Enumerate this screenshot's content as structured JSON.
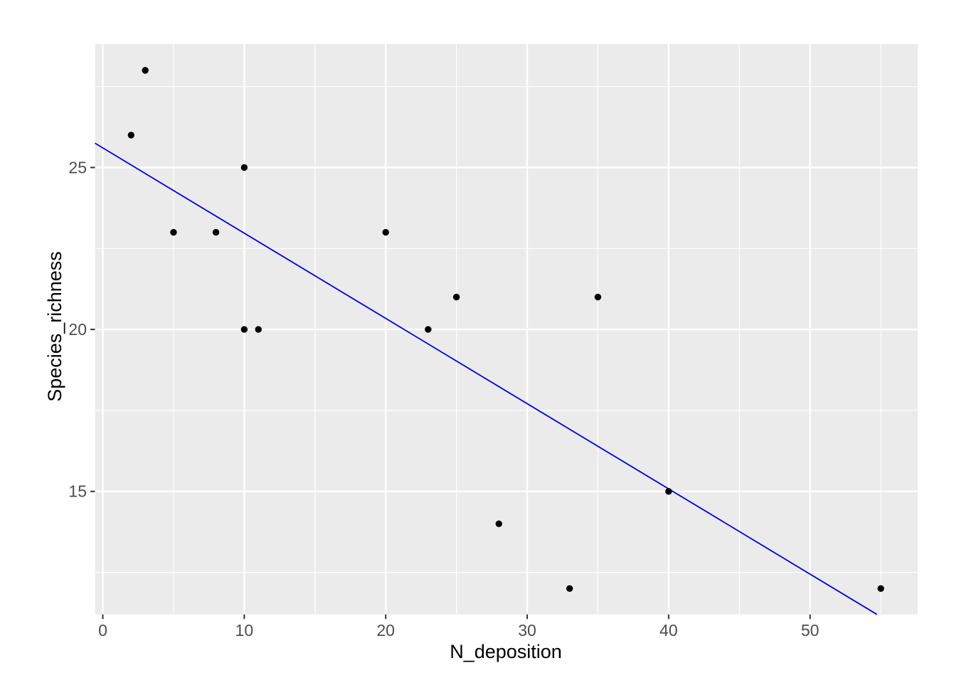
{
  "figure": {
    "background": "#FFFFFF",
    "description": "Scatter plot of Species_richness versus N_deposition with linear regression line"
  },
  "chart_data": {
    "type": "scatter",
    "title": "",
    "xlabel": "N_deposition",
    "ylabel": "Species_richness",
    "points": {
      "x": [
        2,
        3,
        5,
        8,
        10,
        10,
        11,
        20,
        23,
        25,
        28,
        33,
        35,
        40,
        55
      ],
      "y": [
        26,
        28,
        23,
        23,
        25,
        20,
        20,
        23,
        20,
        21,
        14,
        12,
        21,
        15,
        12
      ]
    },
    "x_ticks": [
      0,
      10,
      20,
      30,
      40,
      50
    ],
    "y_ticks": [
      15,
      20,
      25
    ],
    "x_minor_ticks": [
      5,
      15,
      25,
      35,
      45,
      55
    ],
    "y_minor_ticks": [
      12.5,
      17.5,
      22.5,
      27.5
    ],
    "xlim": [
      -0.553,
      57.61
    ],
    "ylim": [
      11.201,
      28.81
    ],
    "trend_line": {
      "type": "linear",
      "slope": -0.2632,
      "intercept": 25.605
    },
    "grid": "on",
    "legend": "none",
    "style": {
      "panel_background": "#EBEBEB",
      "grid_major_color": "#FFFFFF",
      "grid_minor_color": "#FFFFFF",
      "point_color": "#000000",
      "trend_line_color": "#0000EE",
      "axis_tick_color": "#333333",
      "tick_label_color": "#4D4D4D",
      "axis_title_color": "#000000"
    }
  }
}
